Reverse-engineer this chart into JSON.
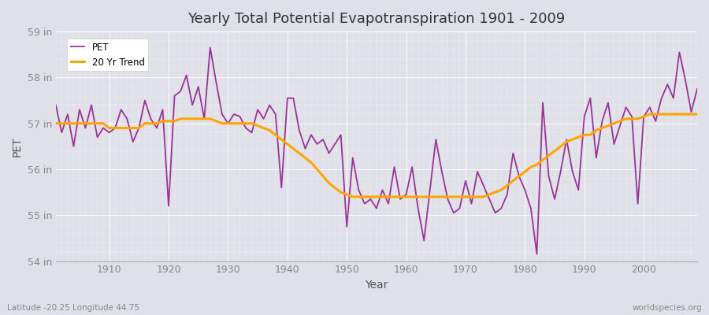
{
  "title": "Yearly Total Potential Evapotranspiration 1901 - 2009",
  "xlabel": "Year",
  "ylabel": "PET",
  "bottom_left_label": "Latitude -20.25 Longitude 44.75",
  "bottom_right_label": "worldspecies.org",
  "legend_pet": "PET",
  "legend_trend": "20 Yr Trend",
  "pet_color": "#993399",
  "trend_color": "#FFA500",
  "background_color": "#E0E0E8",
  "ylim": [
    54.0,
    59.0
  ],
  "ytick_labels": [
    "54 in",
    "55 in",
    "56 in",
    "57 in",
    "58 in",
    "59 in"
  ],
  "ytick_values": [
    54,
    55,
    56,
    57,
    58,
    59
  ],
  "years": [
    1901,
    1902,
    1903,
    1904,
    1905,
    1906,
    1907,
    1908,
    1909,
    1910,
    1911,
    1912,
    1913,
    1914,
    1915,
    1916,
    1917,
    1918,
    1919,
    1920,
    1921,
    1922,
    1923,
    1924,
    1925,
    1926,
    1927,
    1928,
    1929,
    1930,
    1931,
    1932,
    1933,
    1934,
    1935,
    1936,
    1937,
    1938,
    1939,
    1940,
    1941,
    1942,
    1943,
    1944,
    1945,
    1946,
    1947,
    1948,
    1949,
    1950,
    1951,
    1952,
    1953,
    1954,
    1955,
    1956,
    1957,
    1958,
    1959,
    1960,
    1961,
    1962,
    1963,
    1964,
    1965,
    1966,
    1967,
    1968,
    1969,
    1970,
    1971,
    1972,
    1973,
    1974,
    1975,
    1976,
    1977,
    1978,
    1979,
    1980,
    1981,
    1982,
    1983,
    1984,
    1985,
    1986,
    1987,
    1988,
    1989,
    1990,
    1991,
    1992,
    1993,
    1994,
    1995,
    1996,
    1997,
    1998,
    1999,
    2000,
    2001,
    2002,
    2003,
    2004,
    2005,
    2006,
    2007,
    2008,
    2009
  ],
  "pet_values": [
    57.4,
    56.8,
    57.2,
    56.5,
    57.3,
    56.9,
    57.4,
    56.7,
    56.9,
    56.8,
    56.9,
    57.3,
    57.1,
    56.6,
    56.9,
    57.5,
    57.1,
    56.9,
    57.3,
    55.2,
    57.6,
    57.7,
    58.05,
    57.4,
    57.8,
    57.1,
    58.65,
    57.9,
    57.2,
    57.0,
    57.2,
    57.15,
    56.9,
    56.8,
    57.3,
    57.1,
    57.4,
    57.2,
    55.6,
    57.55,
    57.55,
    56.85,
    56.45,
    56.75,
    56.55,
    56.65,
    56.35,
    56.55,
    56.75,
    54.75,
    56.25,
    55.55,
    55.25,
    55.35,
    55.15,
    55.55,
    55.25,
    56.05,
    55.35,
    55.45,
    56.05,
    55.15,
    54.45,
    55.55,
    56.65,
    55.95,
    55.35,
    55.05,
    55.15,
    55.75,
    55.25,
    55.95,
    55.65,
    55.35,
    55.05,
    55.15,
    55.45,
    56.35,
    55.85,
    55.55,
    55.15,
    54.15,
    57.45,
    55.85,
    55.35,
    55.95,
    56.65,
    55.95,
    55.55,
    57.15,
    57.55,
    56.25,
    57.05,
    57.45,
    56.55,
    56.95,
    57.35,
    57.15,
    55.25,
    57.15,
    57.35,
    57.05,
    57.55,
    57.85,
    57.55,
    58.55,
    57.95,
    57.25,
    57.75
  ],
  "trend_values": [
    57.0,
    57.0,
    57.0,
    57.0,
    57.0,
    57.0,
    57.0,
    57.0,
    57.0,
    56.9,
    56.9,
    56.9,
    56.9,
    56.9,
    56.9,
    57.0,
    57.0,
    57.0,
    57.05,
    57.05,
    57.05,
    57.1,
    57.1,
    57.1,
    57.1,
    57.1,
    57.1,
    57.05,
    57.0,
    57.0,
    57.0,
    57.0,
    57.0,
    57.0,
    56.95,
    56.9,
    56.85,
    56.75,
    56.65,
    56.55,
    56.45,
    56.35,
    56.25,
    56.15,
    56.0,
    55.85,
    55.7,
    55.6,
    55.5,
    55.45,
    55.4,
    55.4,
    55.4,
    55.4,
    55.4,
    55.4,
    55.4,
    55.4,
    55.4,
    55.4,
    55.4,
    55.4,
    55.4,
    55.4,
    55.4,
    55.4,
    55.4,
    55.4,
    55.4,
    55.4,
    55.4,
    55.4,
    55.4,
    55.45,
    55.5,
    55.55,
    55.65,
    55.75,
    55.85,
    55.95,
    56.05,
    56.1,
    56.2,
    56.3,
    56.4,
    56.5,
    56.6,
    56.65,
    56.7,
    56.75,
    56.75,
    56.85,
    56.9,
    56.95,
    57.0,
    57.05,
    57.1,
    57.1,
    57.1,
    57.15,
    57.2,
    57.2,
    57.2,
    57.2,
    57.2,
    57.2,
    57.2,
    57.2,
    57.2
  ]
}
